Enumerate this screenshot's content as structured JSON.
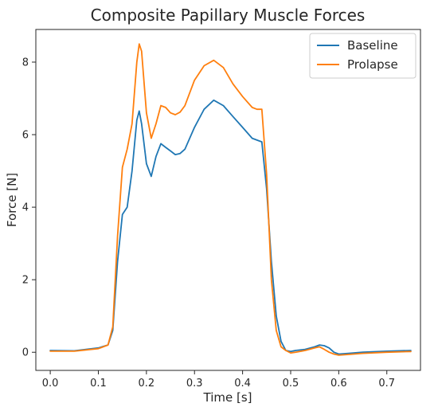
{
  "chart_data": {
    "type": "line",
    "title": "Composite Papillary Muscle Forces",
    "xlabel": "Time [s]",
    "ylabel": "Force [N]",
    "xlim": [
      -0.03,
      0.77
    ],
    "ylim": [
      -0.5,
      8.9
    ],
    "xticks": [
      0.0,
      0.1,
      0.2,
      0.3,
      0.4,
      0.5,
      0.6,
      0.7
    ],
    "xtick_labels": [
      "0.0",
      "0.1",
      "0.2",
      "0.3",
      "0.4",
      "0.5",
      "0.6",
      "0.7"
    ],
    "yticks": [
      0,
      2,
      4,
      6,
      8
    ],
    "ytick_labels": [
      "0",
      "2",
      "4",
      "6",
      "8"
    ],
    "grid": false,
    "legend_position": "top-right",
    "series": [
      {
        "name": "Baseline",
        "color": "#1f77b4",
        "x": [
          0.0,
          0.05,
          0.1,
          0.12,
          0.13,
          0.14,
          0.15,
          0.16,
          0.17,
          0.18,
          0.185,
          0.19,
          0.2,
          0.21,
          0.22,
          0.23,
          0.24,
          0.25,
          0.26,
          0.27,
          0.28,
          0.3,
          0.32,
          0.34,
          0.36,
          0.38,
          0.4,
          0.42,
          0.43,
          0.44,
          0.45,
          0.46,
          0.47,
          0.48,
          0.49,
          0.5,
          0.51,
          0.53,
          0.55,
          0.56,
          0.57,
          0.58,
          0.59,
          0.6,
          0.62,
          0.65,
          0.7,
          0.75
        ],
        "y": [
          0.05,
          0.04,
          0.12,
          0.2,
          0.6,
          2.5,
          3.8,
          4.0,
          5.0,
          6.4,
          6.65,
          6.3,
          5.2,
          4.85,
          5.4,
          5.75,
          5.65,
          5.55,
          5.45,
          5.48,
          5.6,
          6.2,
          6.7,
          6.95,
          6.8,
          6.5,
          6.2,
          5.9,
          5.85,
          5.8,
          4.5,
          2.5,
          1.0,
          0.3,
          0.05,
          0.02,
          0.05,
          0.08,
          0.15,
          0.2,
          0.18,
          0.12,
          0.0,
          -0.05,
          -0.03,
          0.0,
          0.03,
          0.05
        ]
      },
      {
        "name": "Prolapse",
        "color": "#ff7f0e",
        "x": [
          0.0,
          0.05,
          0.1,
          0.12,
          0.13,
          0.14,
          0.15,
          0.16,
          0.17,
          0.18,
          0.185,
          0.19,
          0.2,
          0.21,
          0.22,
          0.23,
          0.24,
          0.25,
          0.26,
          0.27,
          0.28,
          0.3,
          0.32,
          0.34,
          0.36,
          0.38,
          0.4,
          0.42,
          0.43,
          0.44,
          0.45,
          0.46,
          0.47,
          0.48,
          0.49,
          0.5,
          0.51,
          0.53,
          0.55,
          0.56,
          0.57,
          0.58,
          0.59,
          0.6,
          0.62,
          0.65,
          0.7,
          0.75
        ],
        "y": [
          0.03,
          0.03,
          0.1,
          0.2,
          0.7,
          3.2,
          5.1,
          5.6,
          6.3,
          8.0,
          8.5,
          8.3,
          6.6,
          5.9,
          6.3,
          6.8,
          6.75,
          6.6,
          6.55,
          6.62,
          6.8,
          7.5,
          7.9,
          8.05,
          7.85,
          7.4,
          7.05,
          6.75,
          6.7,
          6.7,
          4.9,
          2.0,
          0.6,
          0.15,
          0.05,
          -0.02,
          0.0,
          0.05,
          0.12,
          0.15,
          0.08,
          0.0,
          -0.05,
          -0.08,
          -0.06,
          -0.03,
          0.0,
          0.02
        ]
      }
    ]
  }
}
